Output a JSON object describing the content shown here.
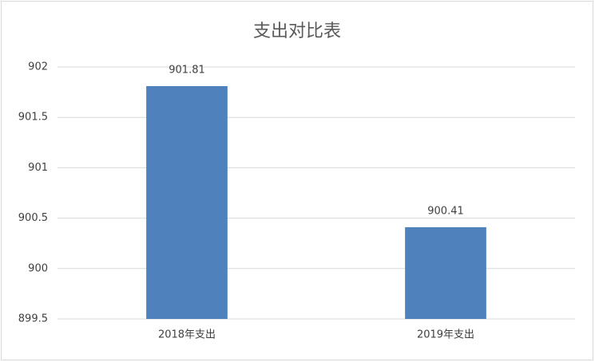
{
  "chart_data": {
    "type": "bar",
    "title": "支出对比表",
    "categories": [
      "2018年支出",
      "2019年支出"
    ],
    "values": [
      901.81,
      900.41
    ],
    "color": "#4f81bd",
    "ylim": [
      899.5,
      902
    ],
    "yticks": [
      899.5,
      900,
      900.5,
      901,
      901.5,
      902
    ],
    "grid": true
  }
}
